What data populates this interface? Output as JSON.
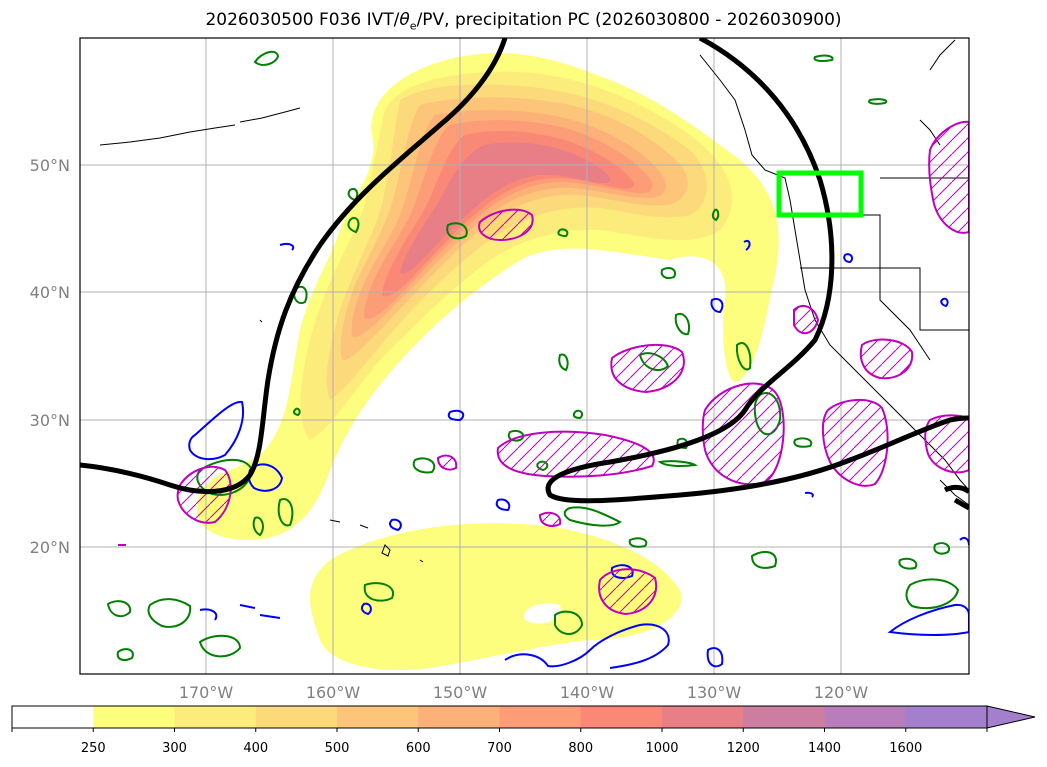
{
  "title": {
    "prefix": "2026030500 F036 IVT/",
    "theta": "θ",
    "theta_sub": "e",
    "suffix": "/PV, precipitation PC (2026030800 - 2026030900)"
  },
  "map": {
    "lat_labels": [
      "50°N",
      "40°N",
      "30°N",
      "20°N"
    ],
    "lon_labels": [
      "170°W",
      "160°W",
      "150°W",
      "140°W",
      "130°W",
      "120°W"
    ],
    "colors": {
      "frame": "#000000",
      "grid": "#b0b0b0",
      "coast": "#000000",
      "pv_line": "#000000",
      "green_contour": "#008000",
      "blue_contour": "#0000ff",
      "magenta_contour": "#bf00bf",
      "highlight_box": "#00ff00"
    }
  },
  "colorbar": {
    "ticks": [
      "250",
      "300",
      "400",
      "500",
      "600",
      "700",
      "800",
      "1000",
      "1200",
      "1400",
      "1600"
    ],
    "colors": [
      "#ffffff",
      "#fdfd7e",
      "#fcec7c",
      "#fcd97b",
      "#fcc57a",
      "#fcb179",
      "#fc9d78",
      "#f98877",
      "#e87f86",
      "#cd7d9f",
      "#b87ebb",
      "#a47fcd"
    ]
  }
}
